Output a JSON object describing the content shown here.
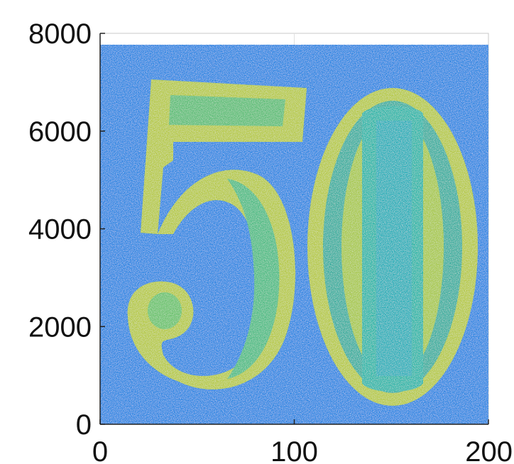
{
  "chart_data": {
    "type": "heatmap",
    "title": "",
    "xlabel": "",
    "ylabel": "",
    "xlim": [
      0,
      200
    ],
    "ylim": [
      0,
      8000
    ],
    "x_ticks": [
      "0",
      "100",
      "200"
    ],
    "y_ticks": [
      "0",
      "2000",
      "4000",
      "6000",
      "8000"
    ],
    "x_tick_values": [
      0,
      100,
      200
    ],
    "y_tick_values": [
      0,
      2000,
      4000,
      6000,
      8000
    ],
    "grid": true,
    "image_extent": {
      "x": [
        0,
        200
      ],
      "y": [
        0,
        7750
      ]
    },
    "colormap": [
      "#2f80e6",
      "#1fa2d8",
      "#2ab6a9",
      "#6cc36e",
      "#b6c947",
      "#d9c73c"
    ],
    "background_color": "#2f80e6",
    "depicted_content": "50"
  }
}
